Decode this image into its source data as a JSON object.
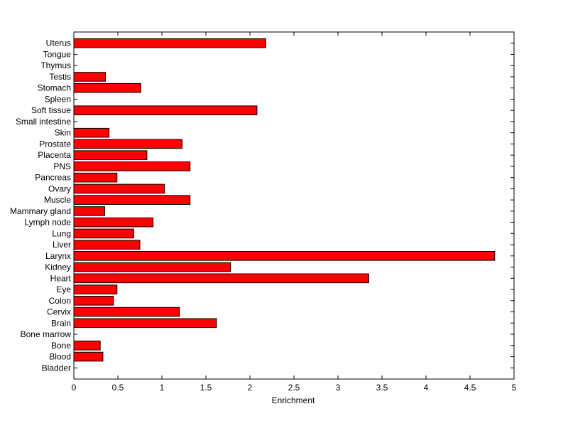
{
  "chart_data": {
    "type": "bar",
    "orientation": "horizontal",
    "categories": [
      "Uterus",
      "Tongue",
      "Thymus",
      "Testis",
      "Stomach",
      "Spleen",
      "Soft tissue",
      "Small intestine",
      "Skin",
      "Prostate",
      "Placenta",
      "PNS",
      "Pancreas",
      "Ovary",
      "Muscle",
      "Mammary gland",
      "Lymph node",
      "Lung",
      "Liver",
      "Larynx",
      "Kidney",
      "Heart",
      "Eye",
      "Colon",
      "Cervix",
      "Brain",
      "Bone marrow",
      "Bone",
      "Blood",
      "Bladder"
    ],
    "values": [
      2.18,
      0,
      0,
      0.36,
      0.76,
      0,
      2.08,
      0,
      0.4,
      1.23,
      0.83,
      1.32,
      0.49,
      1.03,
      1.32,
      0.35,
      0.9,
      0.68,
      0.75,
      4.78,
      1.78,
      3.35,
      0.49,
      0.45,
      1.2,
      1.62,
      0,
      0.3,
      0.33,
      0
    ],
    "xlabel": "Enrichment",
    "ylabel": "",
    "title": "",
    "xlim": [
      0,
      5
    ],
    "xticks": [
      "0",
      "0.5",
      "1",
      "1.5",
      "2",
      "2.5",
      "3",
      "3.5",
      "4",
      "4.5",
      "5"
    ],
    "grid": false,
    "bar_color": "#ff0000",
    "bar_edge_color": "#000000"
  }
}
